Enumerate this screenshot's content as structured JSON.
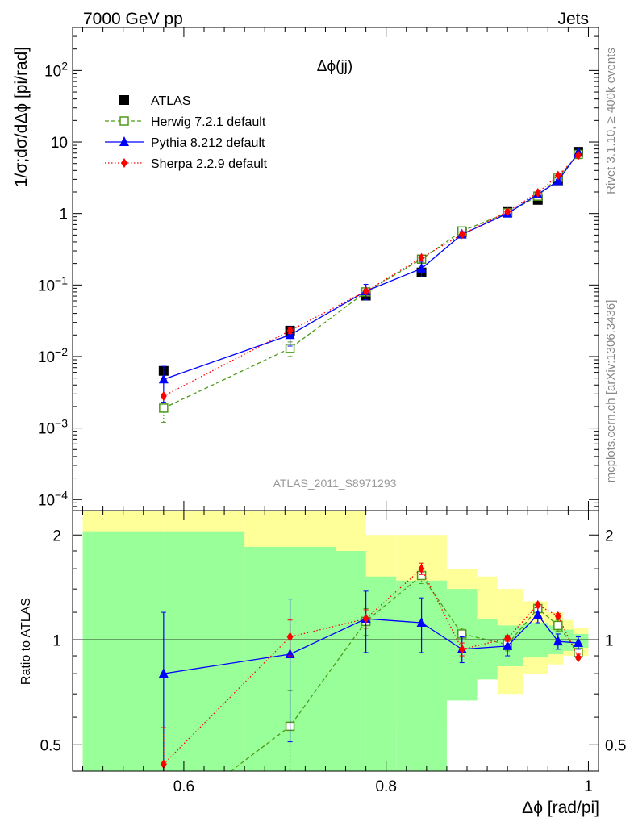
{
  "header": {
    "left": "7000 GeV pp",
    "right": "Jets"
  },
  "side_labels": {
    "rivet": "Rivet 3.1.10, ≥ 400k events",
    "mcplots": "mcplots.cern.ch [arXiv:1306.3436]"
  },
  "analysis_id": "ATLAS_2011_S8971293",
  "chart_data": [
    {
      "type": "line",
      "panel": "main",
      "title": "Δϕ(jj)",
      "ylabel": "1/σ;dσ/dΔϕ [pi/rad]",
      "yscale": "log",
      "ylim": [
        7e-05,
        400
      ],
      "xlim": [
        0.49,
        1.01
      ],
      "yticklabels": [
        {
          "v": 100,
          "b": "10",
          "s": "2"
        },
        {
          "v": 10,
          "b": "10",
          "s": ""
        },
        {
          "v": 1,
          "b": "1",
          "s": ""
        },
        {
          "v": 0.1,
          "b": "10",
          "s": "−1"
        },
        {
          "v": 0.01,
          "b": "10",
          "s": "−2"
        },
        {
          "v": 0.001,
          "b": "10",
          "s": "−3"
        },
        {
          "v": 0.0001,
          "b": "10",
          "s": "−4"
        }
      ],
      "legend_position": "top-left",
      "x": [
        0.58,
        0.705,
        0.78,
        0.835,
        0.875,
        0.92,
        0.95,
        0.97,
        0.99
      ],
      "series": [
        {
          "name": "ATLAS",
          "color": "#000000",
          "marker": "square-filled",
          "values": [
            0.0063,
            0.023,
            0.071,
            0.15,
            0.55,
            1.05,
            1.55,
            2.9,
            7.3
          ],
          "errors": [
            0.0008,
            0.003,
            0.006,
            0.015,
            0.04,
            0.06,
            0.08,
            0.15,
            0.3
          ]
        },
        {
          "name": "Herwig 7.2.1 default",
          "color": "#4d9a18",
          "marker": "square-open",
          "dash": "5,3",
          "values": [
            0.0019,
            0.013,
            0.08,
            0.23,
            0.57,
            1.02,
            1.75,
            3.2,
            6.7
          ],
          "errors": [
            0.0007,
            0.003,
            0.008,
            0.02,
            0.03,
            0.05,
            0.07,
            0.15,
            0.3
          ]
        },
        {
          "name": "Pythia 8.212 default",
          "color": "#0000ff",
          "marker": "triangle-filled",
          "dash": "",
          "values": [
            0.0048,
            0.02,
            0.082,
            0.17,
            0.51,
            1.0,
            1.85,
            2.85,
            7.1
          ],
          "errors": [
            0.0025,
            0.006,
            0.02,
            0.04,
            0.05,
            0.07,
            0.09,
            0.15,
            0.3
          ]
        },
        {
          "name": "Sherpa 2.2.9 default",
          "color": "#ff0000",
          "marker": "diamond-filled",
          "dash": "1.5,2.5",
          "values": [
            0.0028,
            0.023,
            0.082,
            0.24,
            0.51,
            1.06,
            1.95,
            3.4,
            6.5
          ],
          "errors": [
            0.0002,
            0.002,
            0.005,
            0.02,
            0.03,
            0.05,
            0.07,
            0.15,
            0.3
          ]
        }
      ]
    },
    {
      "type": "line",
      "panel": "ratio",
      "xlabel": "Δϕ [rad/pi]",
      "ylabel": "Ratio to ATLAS",
      "yscale": "log",
      "ylim": [
        0.42,
        2.35
      ],
      "xlim": [
        0.49,
        1.01
      ],
      "xticks": [
        0.6,
        0.8,
        1.0
      ],
      "xticklabels": [
        "0.6",
        "0.8",
        "1"
      ],
      "yticks": [
        0.5,
        1,
        2
      ],
      "yticklabels": [
        "0.5",
        "1",
        "2"
      ],
      "bands": {
        "edges": [
          0.5,
          0.58,
          0.66,
          0.75,
          0.78,
          0.81,
          0.86,
          0.89,
          0.91,
          0.935,
          0.96,
          0.975,
          0.985,
          1.0
        ],
        "green_low": [
          0.4,
          0.4,
          0.4,
          0.4,
          0.4,
          0.4,
          0.67,
          0.77,
          0.84,
          0.89,
          0.91,
          0.93,
          0.95
        ],
        "green_high": [
          2.05,
          2.05,
          1.85,
          1.8,
          1.52,
          1.48,
          1.4,
          1.15,
          1.1,
          1.12,
          1.1,
          1.07,
          1.04
        ],
        "yellow_low": [
          0.4,
          0.4,
          0.4,
          0.4,
          0.52,
          0.57,
          0.75,
          0.77,
          0.7,
          0.8,
          0.85,
          0.9,
          0.9
        ],
        "yellow_high": [
          2.5,
          2.5,
          2.5,
          2.5,
          2.0,
          2.0,
          1.6,
          1.52,
          1.4,
          1.29,
          1.2,
          1.14,
          1.08
        ],
        "green_color": "#99ff99",
        "yellow_color": "#ffff99"
      },
      "x": [
        0.58,
        0.705,
        0.78,
        0.835,
        0.875,
        0.92,
        0.95,
        0.97,
        0.99
      ],
      "series": [
        {
          "name": "Herwig 7.2.1 default",
          "color": "#4d9a18",
          "marker": "square-open",
          "dash": "5,3",
          "values": [
            0.3,
            0.565,
            1.13,
            1.53,
            1.04,
            0.97,
            1.23,
            1.1,
            0.92
          ],
          "errors": [
            0.05,
            0.15,
            0.1,
            0.08,
            0.04,
            0.04,
            0.04,
            0.04,
            0.04
          ]
        },
        {
          "name": "Pythia 8.212 default",
          "color": "#0000ff",
          "marker": "triangle-filled",
          "dash": "",
          "values": [
            0.8,
            0.91,
            1.15,
            1.12,
            0.94,
            0.96,
            1.18,
            0.99,
            0.98
          ],
          "errors": [
            0.4,
            0.4,
            0.23,
            0.2,
            0.08,
            0.06,
            0.06,
            0.05,
            0.04
          ]
        },
        {
          "name": "Sherpa 2.2.9 default",
          "color": "#ff0000",
          "marker": "diamond-filled",
          "dash": "1.5,2.5",
          "values": [
            0.44,
            1.02,
            1.15,
            1.6,
            0.94,
            1.01,
            1.26,
            1.17,
            0.89
          ],
          "errors": [
            0.12,
            0.12,
            0.07,
            0.06,
            0.04,
            0.02,
            0.02,
            0.02,
            0.02
          ]
        }
      ]
    }
  ]
}
